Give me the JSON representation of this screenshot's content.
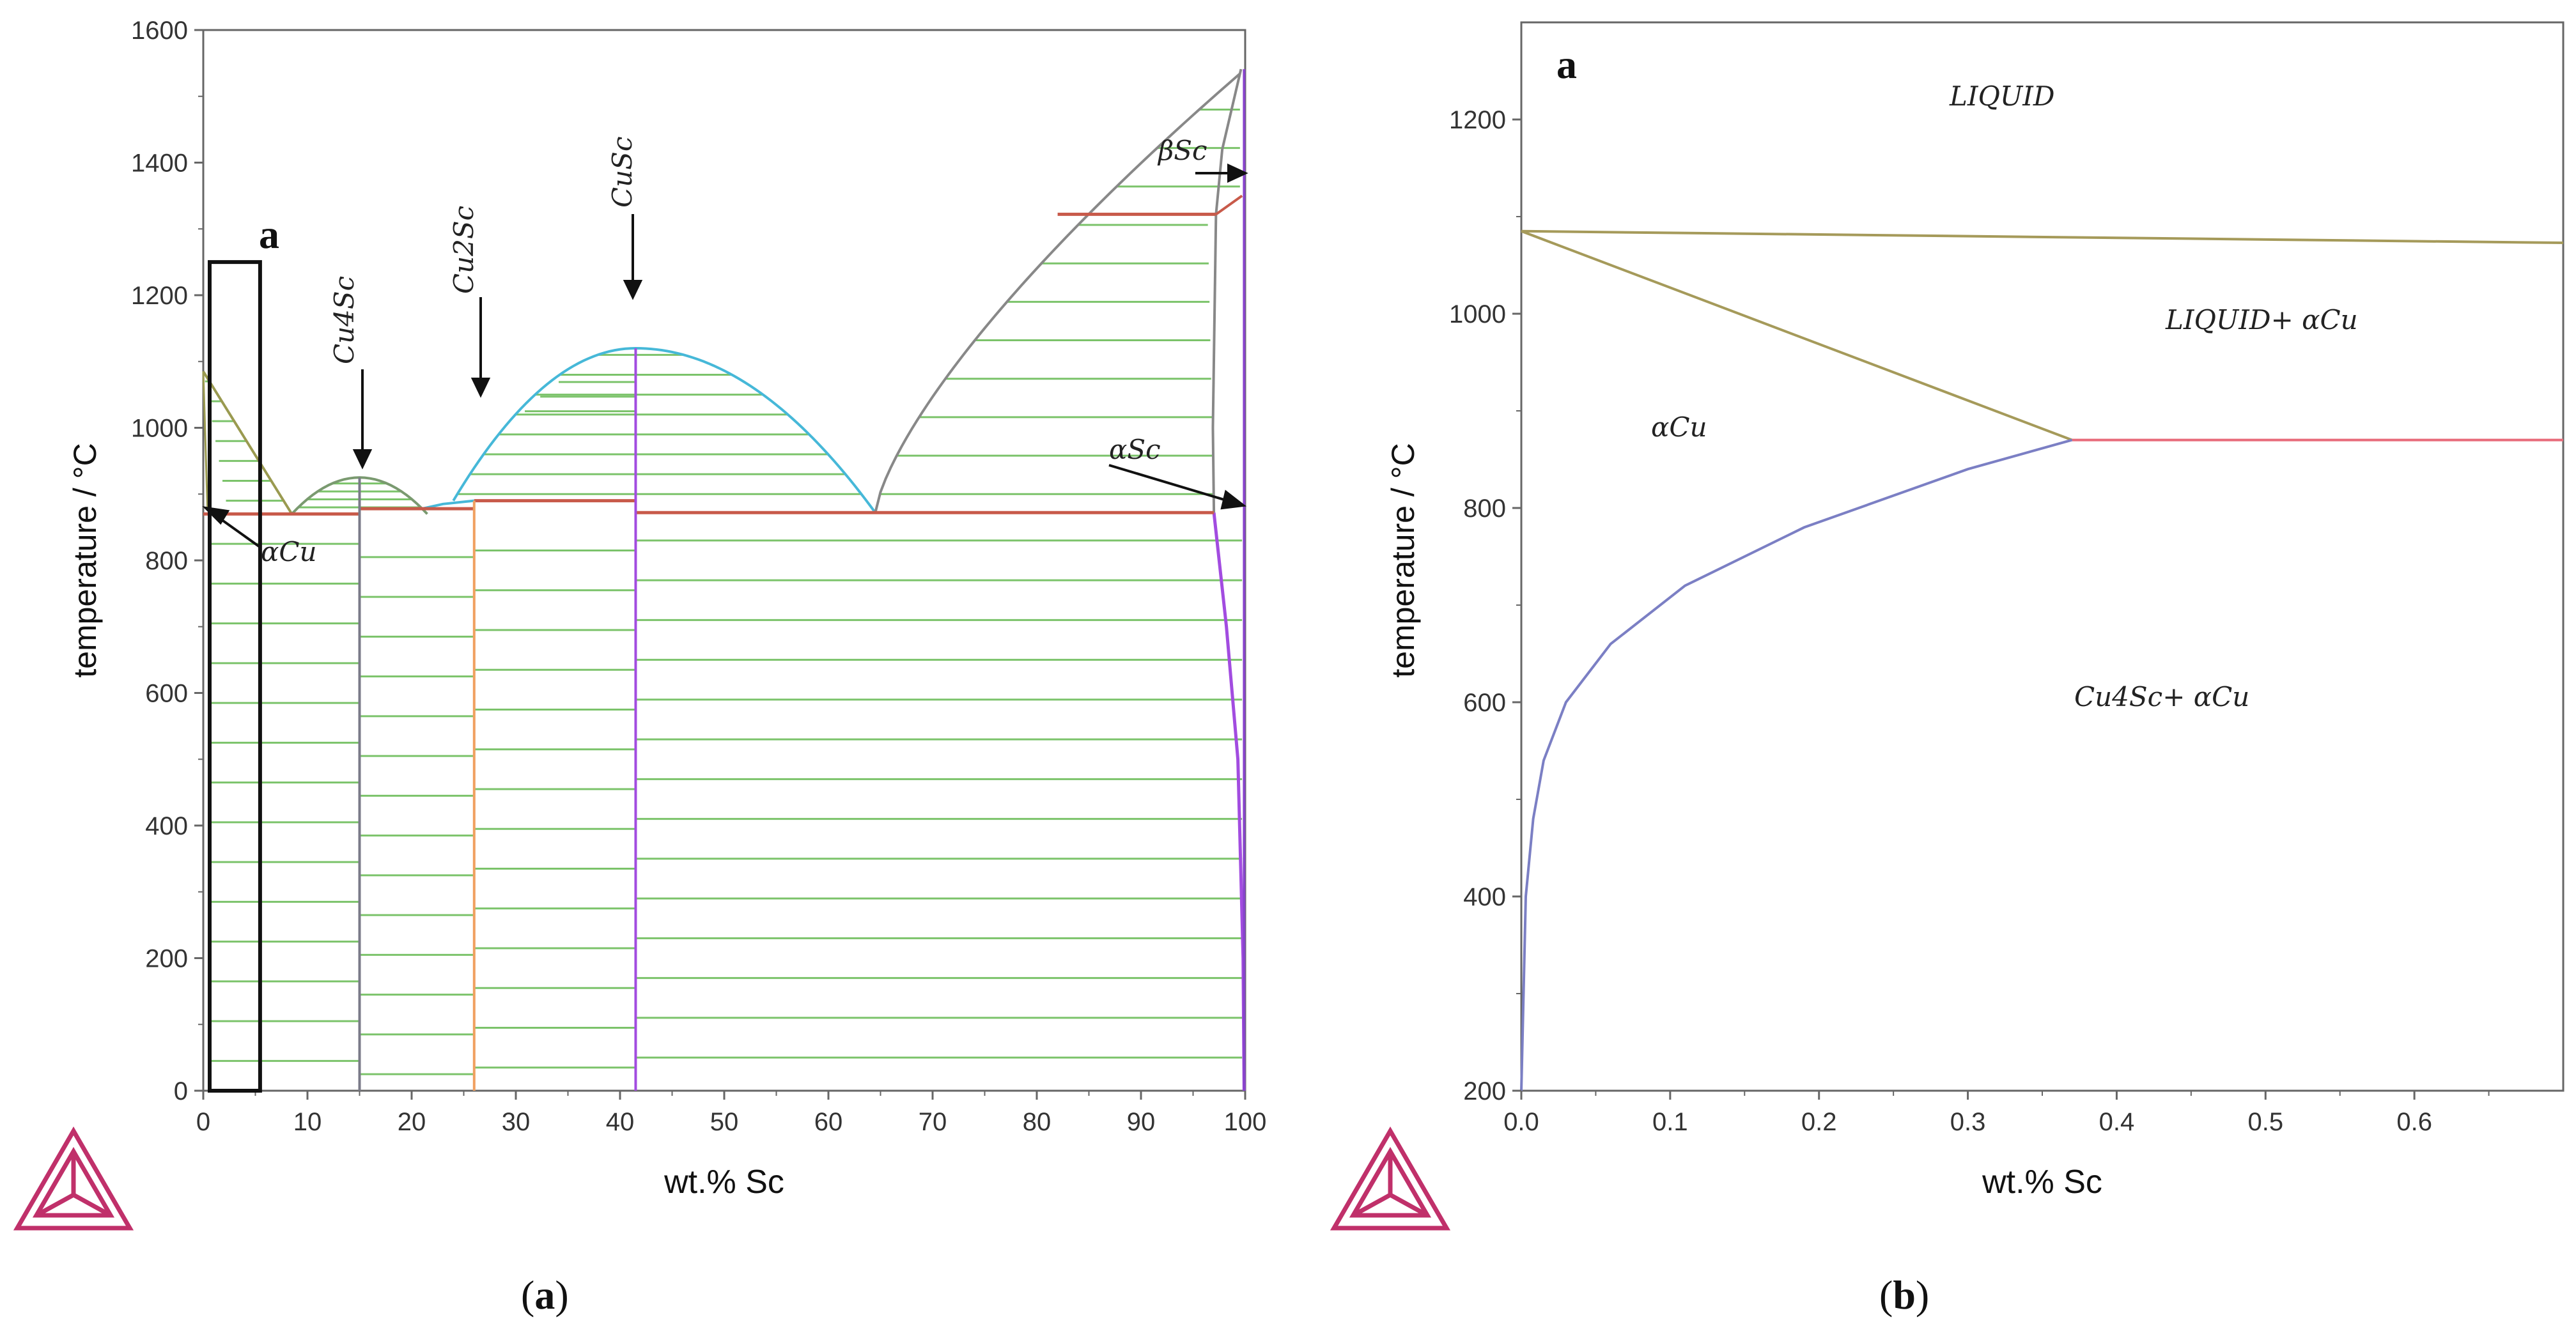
{
  "chart_data": [
    {
      "type": "phase-diagram",
      "panel_letter": "a",
      "ylabel": "temperature / °C",
      "xlabel": "wt.% Sc",
      "xlim": [
        0,
        100
      ],
      "ylim": [
        0,
        1600
      ],
      "xticks": [
        "0",
        "10",
        "20",
        "30",
        "40",
        "50",
        "60",
        "70",
        "80",
        "90",
        "100"
      ],
      "yticks": [
        "0",
        "200",
        "400",
        "600",
        "800",
        "1000",
        "1200",
        "1400",
        "1600"
      ],
      "phase_labels": [
        "αCu",
        "Cu4Sc",
        "Cu2Sc",
        "CuSc",
        "βSc",
        "αSc"
      ],
      "reference_points": {
        "cu_melting_C": 1085,
        "eutectic1": {
          "x": 8.5,
          "T": 870
        },
        "cu4sc_congruent": {
          "x": 15,
          "T": 925
        },
        "eutectic2": {
          "x": 21,
          "T": 878
        },
        "cu2sc_peritectic": {
          "x": 26,
          "T": 890
        },
        "cusc_congruent": {
          "x": 41.5,
          "T": 1120
        },
        "eutectic3": {
          "x": 64.5,
          "T": 872
        },
        "sc_transition": {
          "x": 97,
          "T": 1322
        },
        "sc_melting_C": 1541
      },
      "highlight_box": {
        "x": [
          0,
          3
        ],
        "T": [
          0,
          1250
        ]
      }
    },
    {
      "type": "phase-diagram",
      "panel_letter": "a",
      "ylabel": "temperature / °C",
      "xlabel": "wt.% Sc",
      "xlim": [
        0,
        0.7
      ],
      "ylim": [
        200,
        1300
      ],
      "xticks": [
        "0.0",
        "0.1",
        "0.2",
        "0.3",
        "0.4",
        "0.5",
        "0.6"
      ],
      "yticks": [
        "200",
        "400",
        "600",
        "800",
        "1000",
        "1200"
      ],
      "region_labels": [
        "LIQUID",
        "LIQUID+ αCu",
        "αCu",
        "Cu4Sc+ αCu"
      ],
      "series": [
        {
          "name": "liquidus",
          "x": [
            0,
            0.7
          ],
          "y": [
            1085,
            1073
          ]
        },
        {
          "name": "solidus",
          "x": [
            0,
            0.37
          ],
          "y": [
            1085,
            870
          ]
        },
        {
          "name": "eutectic",
          "x": [
            0.37,
            0.7
          ],
          "y": [
            870,
            870
          ]
        },
        {
          "name": "solvus",
          "x": [
            0,
            0.003,
            0.008,
            0.015,
            0.03,
            0.06,
            0.11,
            0.19,
            0.3,
            0.37
          ],
          "y": [
            200,
            400,
            480,
            540,
            600,
            660,
            720,
            780,
            840,
            870
          ]
        }
      ]
    }
  ],
  "captions": {
    "a_open": "(",
    "a_letter": "a",
    "a_close": ")",
    "b_open": "(",
    "b_letter": "b",
    "b_close": ")"
  }
}
